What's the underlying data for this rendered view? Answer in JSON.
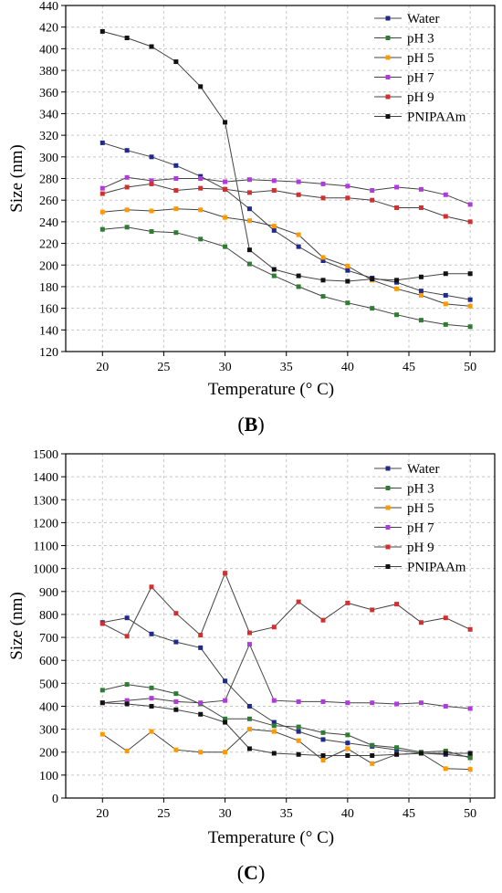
{
  "colors": {
    "Water": "#1f2a8c",
    "pH 3": "#2e7d32",
    "pH 5": "#ff9900",
    "pH 7": "#b03ae0",
    "pH 9": "#d32f2f",
    "PNIPAAm": "#111111",
    "grid": "#c8c8c8",
    "line": "#444444"
  },
  "chart_data": [
    {
      "type": "line",
      "panel_label": "B",
      "xlabel": "Temperature (° C)",
      "ylabel": "Size (nm)",
      "xlim": [
        17,
        52
      ],
      "ylim": [
        120,
        440
      ],
      "xticks": [
        20,
        25,
        30,
        35,
        40,
        45,
        50
      ],
      "yticks": [
        120,
        140,
        160,
        180,
        200,
        220,
        240,
        260,
        280,
        300,
        320,
        340,
        360,
        380,
        400,
        420,
        440
      ],
      "grid": true,
      "legend_position": "top-right",
      "x": [
        20,
        22,
        24,
        26,
        28,
        30,
        32,
        34,
        36,
        38,
        40,
        42,
        44,
        46,
        48,
        50
      ],
      "series": [
        {
          "name": "Water",
          "values": [
            313,
            306,
            300,
            292,
            282,
            270,
            252,
            232,
            217,
            204,
            195,
            188,
            184,
            176,
            172,
            168
          ]
        },
        {
          "name": "pH 3",
          "values": [
            233,
            235,
            231,
            230,
            224,
            217,
            201,
            190,
            180,
            171,
            165,
            160,
            154,
            149,
            145,
            143
          ]
        },
        {
          "name": "pH 5",
          "values": [
            249,
            251,
            250,
            252,
            251,
            244,
            241,
            236,
            228,
            207,
            199,
            186,
            178,
            172,
            164,
            162
          ]
        },
        {
          "name": "pH 7",
          "values": [
            271,
            281,
            278,
            280,
            280,
            277,
            279,
            278,
            277,
            275,
            273,
            269,
            272,
            270,
            265,
            256
          ]
        },
        {
          "name": "pH 9",
          "values": [
            266,
            272,
            275,
            269,
            271,
            270,
            267,
            269,
            265,
            262,
            262,
            260,
            253,
            253,
            245,
            240
          ]
        },
        {
          "name": "PNIPAAm",
          "values": [
            416,
            410,
            402,
            388,
            365,
            332,
            214,
            196,
            190,
            186,
            185,
            187,
            186,
            189,
            192,
            192
          ]
        }
      ]
    },
    {
      "type": "line",
      "panel_label": "C",
      "xlabel": "Temperature (° C)",
      "ylabel": "Size (nm)",
      "xlim": [
        17,
        52
      ],
      "ylim": [
        0,
        1500
      ],
      "xticks": [
        20,
        25,
        30,
        35,
        40,
        45,
        50
      ],
      "yticks": [
        0,
        100,
        200,
        300,
        400,
        500,
        600,
        700,
        800,
        900,
        1000,
        1100,
        1200,
        1300,
        1400,
        1500
      ],
      "grid": true,
      "legend_position": "top-right",
      "x": [
        20,
        22,
        24,
        26,
        28,
        30,
        32,
        34,
        36,
        38,
        40,
        42,
        44,
        46,
        48,
        50
      ],
      "series": [
        {
          "name": "Water",
          "values": [
            765,
            785,
            715,
            680,
            655,
            510,
            400,
            330,
            290,
            255,
            240,
            225,
            210,
            195,
            190,
            180
          ]
        },
        {
          "name": "pH 3",
          "values": [
            470,
            495,
            480,
            455,
            410,
            345,
            345,
            315,
            310,
            285,
            275,
            230,
            220,
            200,
            205,
            175
          ]
        },
        {
          "name": "pH 5",
          "values": [
            278,
            205,
            290,
            210,
            200,
            200,
            300,
            290,
            250,
            165,
            215,
            150,
            190,
            195,
            128,
            125
          ]
        },
        {
          "name": "pH 7",
          "values": [
            415,
            425,
            435,
            420,
            415,
            425,
            670,
            425,
            420,
            420,
            415,
            415,
            410,
            415,
            400,
            390
          ]
        },
        {
          "name": "pH 9",
          "values": [
            760,
            705,
            920,
            805,
            710,
            980,
            720,
            745,
            855,
            775,
            850,
            820,
            845,
            765,
            785,
            735
          ]
        },
        {
          "name": "PNIPAAm",
          "values": [
            415,
            410,
            400,
            385,
            365,
            330,
            215,
            195,
            190,
            185,
            185,
            185,
            190,
            195,
            195,
            195
          ]
        }
      ]
    }
  ]
}
